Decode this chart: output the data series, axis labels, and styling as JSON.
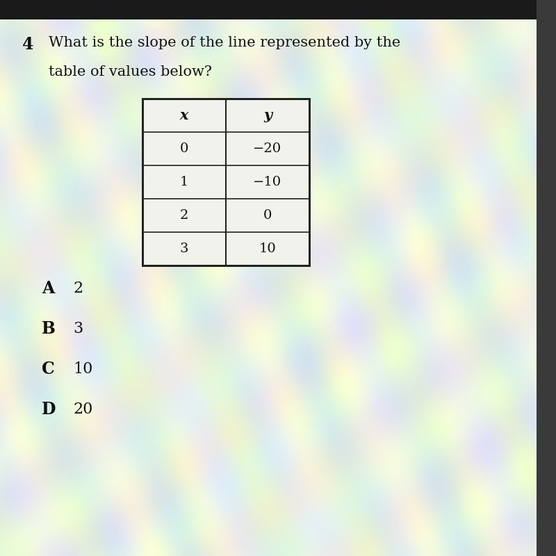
{
  "question_number": "4",
  "question_text_line1": "What is the slope of the line represented by the",
  "question_text_line2": "table of values below?",
  "table_headers": [
    "x",
    "y"
  ],
  "table_data": [
    [
      "0",
      "−20"
    ],
    [
      "1",
      "−10"
    ],
    [
      "2",
      "0"
    ],
    [
      "3",
      "10"
    ]
  ],
  "choices": [
    [
      "A",
      "2"
    ],
    [
      "B",
      "3"
    ],
    [
      "C",
      "10"
    ],
    [
      "D",
      "20"
    ]
  ],
  "bg_color_light": "#e8eed8",
  "bg_color_mid": "#c8d8b0",
  "bg_color_dark": "#b0c898",
  "table_bg": "#f2f2ec",
  "table_border": "#222222",
  "text_color": "#111111",
  "top_bar_color": "#1a1a1a",
  "right_bar_color": "#444444"
}
